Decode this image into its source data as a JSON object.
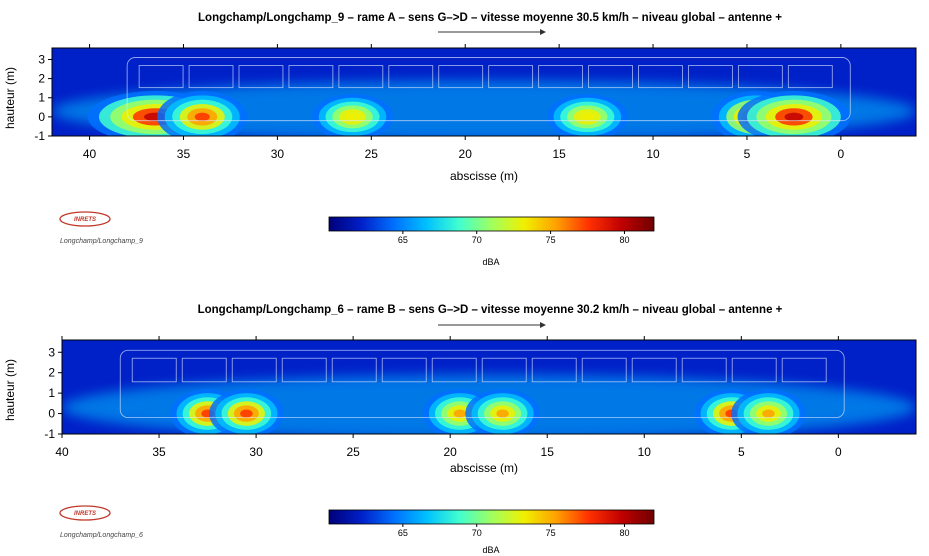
{
  "colorscale": {
    "min": 60,
    "max": 82,
    "stops": [
      "#00007a",
      "#0020c8",
      "#0070ff",
      "#00c0ff",
      "#40ffd0",
      "#a0ff60",
      "#f0f000",
      "#ffa000",
      "#ff3000",
      "#c00000",
      "#700000"
    ]
  },
  "chart_data": [
    {
      "type": "heatmap",
      "title": "Longchamp/Longchamp_9  –  rame A – sens G–>D – vitesse moyenne 30.5 km/h – niveau global – antenne +",
      "xlabel": "abscisse (m)",
      "ylabel": "hauteur (m)",
      "xlim": [
        42,
        -4
      ],
      "ylim": [
        -1,
        3.6
      ],
      "xticks": [
        40,
        35,
        30,
        25,
        20,
        15,
        10,
        5,
        0
      ],
      "yticks": [
        -1,
        0,
        1,
        2,
        3
      ],
      "background_level": 63,
      "hotspots": [
        {
          "x": 36.5,
          "y": 0,
          "sx": 3.0,
          "sy": 0.9,
          "level": 80
        },
        {
          "x": 34.0,
          "y": 0,
          "sx": 2.0,
          "sy": 0.9,
          "level": 77
        },
        {
          "x": 26.0,
          "y": 0,
          "sx": 1.8,
          "sy": 0.8,
          "level": 74
        },
        {
          "x": 13.5,
          "y": 0,
          "sx": 1.8,
          "sy": 0.8,
          "level": 74
        },
        {
          "x": 4.5,
          "y": 0,
          "sx": 2.0,
          "sy": 0.9,
          "level": 78
        },
        {
          "x": 2.5,
          "y": 0,
          "sx": 2.5,
          "sy": 0.9,
          "level": 80
        }
      ],
      "colorbar": {
        "label": "dBA",
        "ticks": [
          65,
          70,
          75,
          80
        ]
      },
      "source_label": "Longchamp/Longchamp_9"
    },
    {
      "type": "heatmap",
      "title": "Longchamp/Longchamp_6  –  rame B – sens G–>D – vitesse moyenne 30.2 km/h – niveau global – antenne +",
      "xlabel": "abscisse (m)",
      "ylabel": "hauteur (m)",
      "xlim": [
        40,
        -4
      ],
      "ylim": [
        -1,
        3.6
      ],
      "xticks": [
        40,
        35,
        30,
        25,
        20,
        15,
        10,
        5,
        0
      ],
      "yticks": [
        -1,
        0,
        1,
        2,
        3
      ],
      "background_level": 63,
      "hotspots": [
        {
          "x": 32.5,
          "y": 0,
          "sx": 1.6,
          "sy": 0.8,
          "level": 77
        },
        {
          "x": 30.5,
          "y": 0,
          "sx": 1.6,
          "sy": 0.8,
          "level": 77
        },
        {
          "x": 19.5,
          "y": 0,
          "sx": 1.6,
          "sy": 0.8,
          "level": 76
        },
        {
          "x": 17.3,
          "y": 0,
          "sx": 1.6,
          "sy": 0.8,
          "level": 76
        },
        {
          "x": 5.5,
          "y": 0,
          "sx": 1.6,
          "sy": 0.8,
          "level": 77
        },
        {
          "x": 3.6,
          "y": 0,
          "sx": 1.6,
          "sy": 0.8,
          "level": 76
        }
      ],
      "colorbar": {
        "label": "dBA",
        "ticks": [
          65,
          70,
          75,
          80
        ]
      },
      "source_label": "Longchamp/Longchamp_6"
    }
  ],
  "logo_text": "INRETS"
}
